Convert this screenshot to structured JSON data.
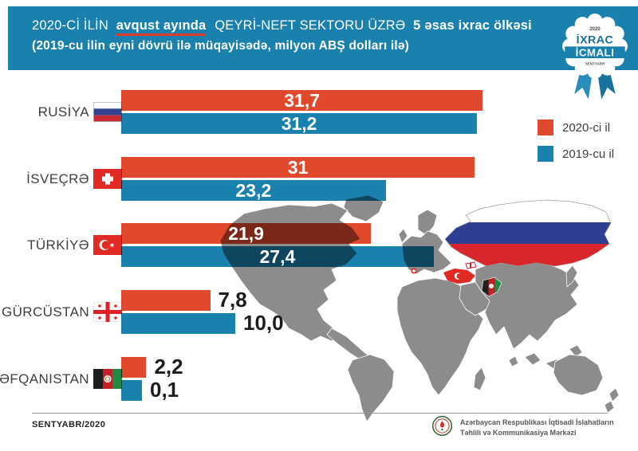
{
  "header": {
    "title_prefix": "2020-Cİ İLİN",
    "title_highlight": "avqust ayında",
    "title_mid": "QEYRİ-NEFT SEKTORU ÜZRƏ",
    "title_bold": "5 əsas ixrac ölkəsi",
    "subtitle": "(2019-cu ilin eyni dövrü ilə müqayisədə, milyon ABŞ dolları ilə)"
  },
  "badge": {
    "year": "2020",
    "line1": "İXRAC",
    "line2": "İCMALI",
    "month": "SENTYABR"
  },
  "legend": {
    "items": [
      {
        "label": "2020-ci il",
        "color": "#e0492c"
      },
      {
        "label": "2019-cu il",
        "color": "#1a80ad"
      }
    ]
  },
  "chart_data": {
    "type": "bar",
    "orientation": "horizontal",
    "title": "2020-ci ilin avqust ayında qeyri-neft sektoru üzrə 5 əsas ixrac ölkəsi",
    "unit": "milyon ABŞ dolları",
    "comparison": "2019-cu ilin eyni dövrü ilə müqayisədə",
    "categories": [
      "RUSİYA",
      "İSVEÇRƏ",
      "TÜRKİYƏ",
      "GÜRCÜSTAN",
      "ƏFQANISTAN"
    ],
    "series": [
      {
        "name": "2020-ci il",
        "color": "#e0492c",
        "values": [
          31.7,
          31,
          21.9,
          7.8,
          2.2
        ],
        "labels": [
          "31,7",
          "31",
          "21,9",
          "7,8",
          "2,2"
        ]
      },
      {
        "name": "2019-cu il",
        "color": "#1a80ad",
        "values": [
          31.2,
          23.2,
          27.4,
          10.0,
          0.1
        ],
        "labels": [
          "31,2",
          "23,2",
          "27,4",
          "10,0",
          "0,1"
        ]
      }
    ],
    "flags": [
      "russia",
      "switzerland",
      "turkey",
      "georgia",
      "afghanistan"
    ],
    "value_label_position": [
      "inside",
      "inside",
      "inside",
      "outside",
      "outside"
    ],
    "legend_position": "right",
    "grid": false,
    "xlim": [
      0,
      33
    ]
  },
  "footer": {
    "date": "SENTYABR/2020",
    "org_line1": "Azərbaycan Respublikası İqtisadi İslahatların",
    "org_line2": "Təhlili və Kommunikasiya Mərkəzi"
  }
}
